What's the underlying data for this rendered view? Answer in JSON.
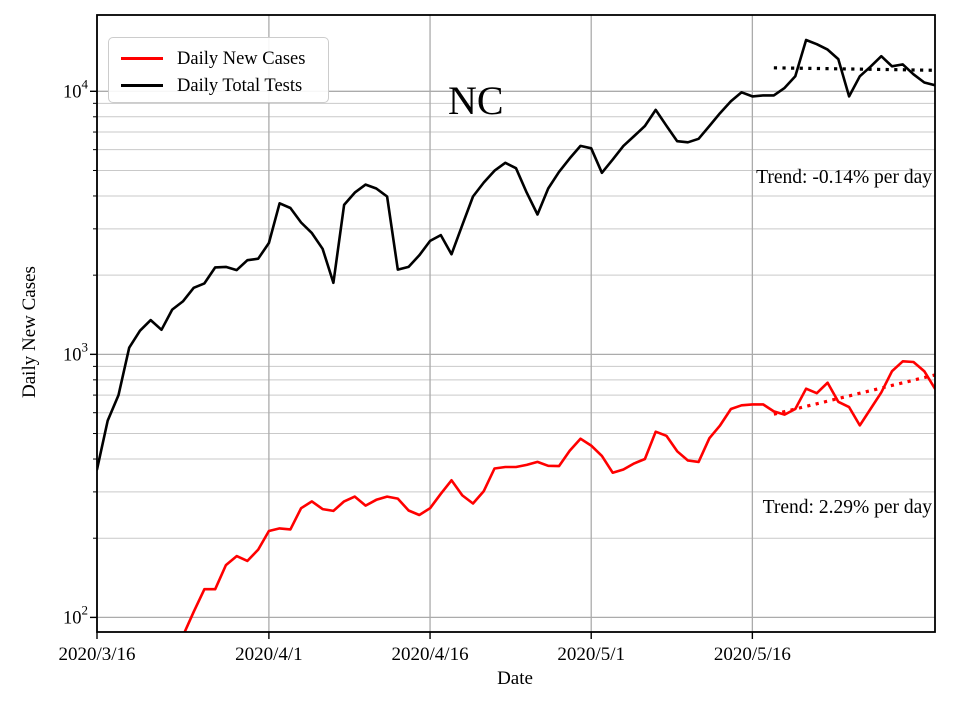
{
  "figure": {
    "title": "NC",
    "xlabel": "Date",
    "ylabel": "Daily New Cases"
  },
  "legend": {
    "items": [
      {
        "label": "Daily New Cases",
        "color": "#ff0000"
      },
      {
        "label": "Daily Total Tests",
        "color": "#000000"
      }
    ]
  },
  "annotations": {
    "tests_trend": "Trend: -0.14% per day",
    "cases_trend": "Trend: 2.29% per day"
  },
  "chart_data": {
    "type": "line",
    "title": "NC",
    "xlabel": "Date",
    "ylabel": "Daily New Cases",
    "yscale": "log",
    "ylim": [
      88,
      19500
    ],
    "grid": true,
    "legend_position": "upper left",
    "axis_color": "#000000",
    "grid_major_color": "#ababab",
    "grid_minor_color": "#c9c9c9",
    "x": [
      "2020/3/16",
      "2020/3/17",
      "2020/3/18",
      "2020/3/19",
      "2020/3/20",
      "2020/3/21",
      "2020/3/22",
      "2020/3/23",
      "2020/3/24",
      "2020/3/25",
      "2020/3/26",
      "2020/3/27",
      "2020/3/28",
      "2020/3/29",
      "2020/3/30",
      "2020/3/31",
      "2020/4/1",
      "2020/4/2",
      "2020/4/3",
      "2020/4/4",
      "2020/4/5",
      "2020/4/6",
      "2020/4/7",
      "2020/4/8",
      "2020/4/9",
      "2020/4/10",
      "2020/4/11",
      "2020/4/12",
      "2020/4/13",
      "2020/4/14",
      "2020/4/15",
      "2020/4/16",
      "2020/4/17",
      "2020/4/18",
      "2020/4/19",
      "2020/4/20",
      "2020/4/21",
      "2020/4/22",
      "2020/4/23",
      "2020/4/24",
      "2020/4/25",
      "2020/4/26",
      "2020/4/27",
      "2020/4/28",
      "2020/4/29",
      "2020/4/30",
      "2020/5/1",
      "2020/5/2",
      "2020/5/3",
      "2020/5/4",
      "2020/5/5",
      "2020/5/6",
      "2020/5/7",
      "2020/5/8",
      "2020/5/9",
      "2020/5/10",
      "2020/5/11",
      "2020/5/12",
      "2020/5/13",
      "2020/5/14",
      "2020/5/15",
      "2020/5/16",
      "2020/5/17",
      "2020/5/18",
      "2020/5/19",
      "2020/5/20",
      "2020/5/21",
      "2020/5/22",
      "2020/5/23",
      "2020/5/24",
      "2020/5/25",
      "2020/5/26",
      "2020/5/27",
      "2020/5/28",
      "2020/5/29",
      "2020/5/30",
      "2020/5/31",
      "2020/6/1",
      "2020/6/2"
    ],
    "xticks": [
      {
        "index": 0,
        "label": "2020/3/16"
      },
      {
        "index": 16,
        "label": "2020/4/1"
      },
      {
        "index": 31,
        "label": "2020/4/16"
      },
      {
        "index": 46,
        "label": "2020/5/1"
      },
      {
        "index": 61,
        "label": "2020/5/16"
      }
    ],
    "yticks": [
      {
        "value": 100,
        "base": "10",
        "exponent": "2"
      },
      {
        "value": 1000,
        "base": "10",
        "exponent": "3"
      },
      {
        "value": 10000,
        "base": "10",
        "exponent": "4"
      }
    ],
    "series": [
      {
        "name": "Daily New Cases",
        "color": "#ff0000",
        "values": [
          null,
          null,
          null,
          null,
          null,
          null,
          null,
          null,
          85,
          105,
          128,
          128,
          158,
          171,
          164,
          181,
          213,
          218,
          216,
          260,
          276,
          258,
          254,
          276,
          288,
          266,
          280,
          288,
          283,
          255,
          245,
          260,
          295,
          332,
          291,
          271,
          302,
          368,
          373,
          373,
          380,
          390,
          377,
          376,
          430,
          478,
          450,
          411,
          355,
          365,
          385,
          400,
          508,
          490,
          428,
          395,
          390,
          480,
          537,
          620,
          640,
          645,
          645,
          607,
          590,
          620,
          740,
          712,
          780,
          660,
          630,
          537,
          620,
          717,
          863,
          941,
          935,
          863,
          740
        ]
      },
      {
        "name": "Daily Total Tests",
        "color": "#000000",
        "values": [
          365,
          560,
          700,
          1060,
          1230,
          1350,
          1240,
          1480,
          1590,
          1790,
          1860,
          2140,
          2150,
          2090,
          2280,
          2310,
          2650,
          3750,
          3600,
          3170,
          2890,
          2520,
          1870,
          3700,
          4120,
          4420,
          4270,
          3980,
          2100,
          2150,
          2380,
          2700,
          2840,
          2400,
          3100,
          3980,
          4500,
          4990,
          5350,
          5100,
          4120,
          3400,
          4270,
          4940,
          5560,
          6200,
          6070,
          4900,
          5500,
          6200,
          6760,
          7380,
          8500,
          7400,
          6460,
          6400,
          6600,
          7380,
          8260,
          9160,
          9910,
          9560,
          9650,
          9650,
          10300,
          11400,
          15670,
          15100,
          14400,
          13250,
          9560,
          11400,
          12400,
          13600,
          12450,
          12650,
          11600,
          10800,
          10550
        ]
      }
    ],
    "trend_lines": [
      {
        "series": "Daily Total Tests",
        "color": "#000000",
        "style": "dotted",
        "rate_label": "Trend: -0.14% per day",
        "rate_pct_per_day": -0.14,
        "start_index": 63,
        "end_index": 78,
        "start_value": 12280,
        "end_value": 12020
      },
      {
        "series": "Daily New Cases",
        "color": "#ff0000",
        "style": "dotted",
        "rate_label": "Trend: 2.29% per day",
        "rate_pct_per_day": 2.29,
        "start_index": 63,
        "end_index": 78,
        "start_value": 592,
        "end_value": 835
      }
    ]
  }
}
